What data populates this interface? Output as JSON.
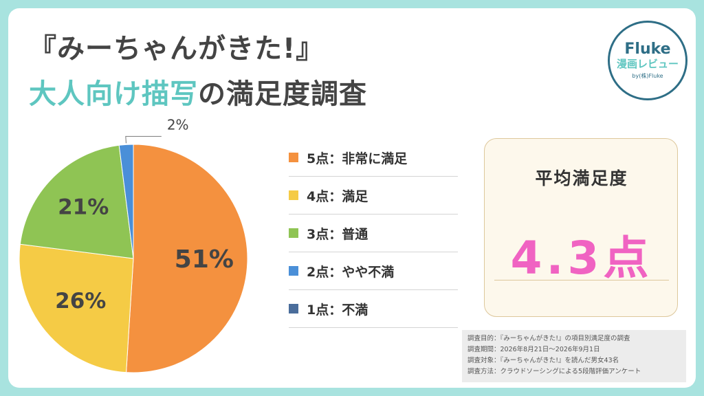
{
  "header": {
    "title_line1": "『みーちゃんがきた!』",
    "title_accent": "大人向け描写",
    "title_rest": "の満足度調査"
  },
  "logo": {
    "name": "Fluke",
    "subtitle": "漫画レビュー",
    "by": "by(株)Fluke"
  },
  "chart_data": {
    "type": "pie",
    "slices": [
      {
        "label": "5点：非常に満足",
        "value": 51,
        "display": "51%",
        "color": "#f4913f"
      },
      {
        "label": "4点：満足",
        "value": 26,
        "display": "26%",
        "color": "#f5cb45"
      },
      {
        "label": "3点：普通",
        "value": 21,
        "display": "21%",
        "color": "#8fc454"
      },
      {
        "label": "2点：やや不満",
        "value": 2,
        "display": "2%",
        "color": "#4a8fd8"
      },
      {
        "label": "1点：不満",
        "value": 0,
        "display": "",
        "color": "#4a6d9b"
      }
    ],
    "start_angle_deg": 0,
    "direction": "clockwise",
    "legend_position": "right"
  },
  "average": {
    "title": "平均満足度",
    "value": "4.3点",
    "value_color": "#f063c2"
  },
  "notes": [
    "調査目的：『みーちゃんがきた!』の項目別満足度の調査",
    "調査期間：2026年8月21日～2026年9月1日",
    "調査対象：『みーちゃんがきた!』を読んだ男女43名",
    "調査方法：クラウドソーシングによる5段階評価アンケート"
  ]
}
